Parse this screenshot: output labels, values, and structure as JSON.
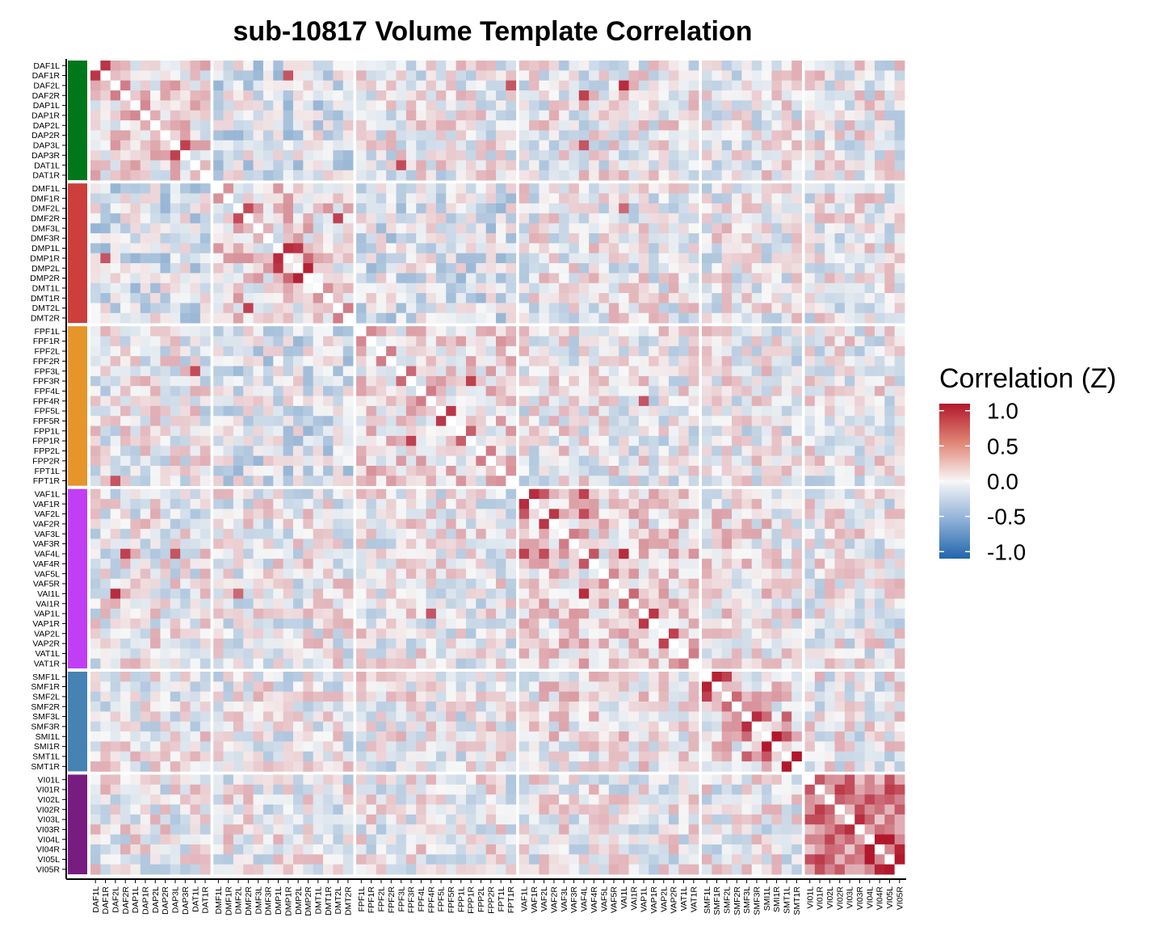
{
  "chart_data": {
    "type": "heatmap",
    "title": "sub-10817 Volume Template Correlation",
    "legend": {
      "title": "Correlation (Z)",
      "ticks": [
        "1.0",
        "0.5",
        "0.0",
        "-0.5",
        "-1.0"
      ],
      "tick_values": [
        1.0,
        0.5,
        0.0,
        -0.5,
        -1.0
      ],
      "range": [
        -1.1,
        1.1
      ],
      "placement": "right"
    },
    "colors": {
      "low": "#2166ac",
      "mid": "#f7f7f7",
      "high": "#b2182b"
    },
    "labels": [
      "DAF1L",
      "DAF1R",
      "DAF2L",
      "DAF2R",
      "DAP1L",
      "DAP1R",
      "DAP2L",
      "DAP2R",
      "DAP3L",
      "DAP3R",
      "DAT1L",
      "DAT1R",
      "DMF1L",
      "DMF1R",
      "DMF2L",
      "DMF2R",
      "DMF3L",
      "DMF3R",
      "DMP1L",
      "DMP1R",
      "DMP2L",
      "DMP2R",
      "DMT1L",
      "DMT1R",
      "DMT2L",
      "DMT2R",
      "FPF1L",
      "FPF1R",
      "FPF2L",
      "FPF2R",
      "FPF3L",
      "FPF3R",
      "FPF4L",
      "FPF4R",
      "FPF5L",
      "FPF5R",
      "FPP1L",
      "FPP1R",
      "FPP2L",
      "FPP2R",
      "FPT1L",
      "FPT1R",
      "VAF1L",
      "VAF1R",
      "VAF2L",
      "VAF2R",
      "VAF3L",
      "VAF3R",
      "VAF4L",
      "VAF4R",
      "VAF5L",
      "VAF5R",
      "VAI1L",
      "VAI1R",
      "VAP1L",
      "VAP1R",
      "VAP2L",
      "VAP2R",
      "VAT1L",
      "VAT1R",
      "SMF1L",
      "SMF1R",
      "SMF2L",
      "SMF2R",
      "SMF3L",
      "SMF3R",
      "SMI1L",
      "SMI1R",
      "SMT1L",
      "SMT1R",
      "VI01L",
      "VI01R",
      "VI02L",
      "VI02R",
      "VI03L",
      "VI03R",
      "VI04L",
      "VI04R",
      "VI05L",
      "VI05R"
    ],
    "groups": [
      {
        "count": 12,
        "color": "#00771a"
      },
      {
        "count": 14,
        "color": "#cc3f3c"
      },
      {
        "count": 16,
        "color": "#e5952a"
      },
      {
        "count": 18,
        "color": "#c23ef5"
      },
      {
        "count": 10,
        "color": "#4682b4"
      },
      {
        "count": 10,
        "color": "#781c81"
      }
    ],
    "highlight_pairs": [
      [
        0,
        1,
        0.95
      ],
      [
        2,
        3,
        0.6
      ],
      [
        4,
        5,
        0.55
      ],
      [
        8,
        9,
        0.9
      ],
      [
        12,
        13,
        0.5
      ],
      [
        14,
        15,
        0.85
      ],
      [
        18,
        19,
        1.0
      ],
      [
        20,
        21,
        1.05
      ],
      [
        18,
        20,
        0.95
      ],
      [
        19,
        21,
        0.7
      ],
      [
        22,
        23,
        0.5
      ],
      [
        24,
        25,
        0.6
      ],
      [
        26,
        27,
        0.55
      ],
      [
        28,
        29,
        0.6
      ],
      [
        30,
        31,
        0.7
      ],
      [
        32,
        33,
        0.6
      ],
      [
        34,
        35,
        0.95
      ],
      [
        36,
        37,
        0.75
      ],
      [
        38,
        39,
        0.6
      ],
      [
        40,
        41,
        0.5
      ],
      [
        42,
        43,
        1.0
      ],
      [
        44,
        45,
        0.95
      ],
      [
        46,
        47,
        0.6
      ],
      [
        48,
        49,
        0.8
      ],
      [
        50,
        51,
        0.55
      ],
      [
        52,
        53,
        0.7
      ],
      [
        54,
        55,
        0.95
      ],
      [
        56,
        57,
        0.9
      ],
      [
        58,
        59,
        0.6
      ],
      [
        42,
        44,
        0.8
      ],
      [
        42,
        48,
        0.9
      ],
      [
        44,
        48,
        0.85
      ],
      [
        52,
        48,
        1.0
      ],
      [
        60,
        61,
        1.05
      ],
      [
        62,
        63,
        0.7
      ],
      [
        64,
        65,
        1.0
      ],
      [
        66,
        67,
        1.1
      ],
      [
        68,
        69,
        1.1
      ],
      [
        60,
        62,
        0.9
      ],
      [
        64,
        66,
        0.7
      ],
      [
        64,
        68,
        0.75
      ],
      [
        66,
        68,
        0.8
      ],
      [
        70,
        71,
        0.8
      ],
      [
        72,
        73,
        0.75
      ],
      [
        74,
        75,
        1.0
      ],
      [
        76,
        77,
        1.15
      ],
      [
        78,
        79,
        1.15
      ],
      [
        76,
        78,
        1.1
      ],
      [
        77,
        79,
        1.05
      ],
      [
        2,
        52,
        1.0
      ],
      [
        3,
        48,
        0.9
      ],
      [
        15,
        24,
        0.9
      ],
      [
        1,
        19,
        0.8
      ],
      [
        30,
        10,
        0.85
      ],
      [
        37,
        31,
        0.9
      ],
      [
        48,
        8,
        0.8
      ],
      [
        52,
        14,
        0.7
      ],
      [
        33,
        54,
        0.8
      ],
      [
        2,
        41,
        0.8
      ]
    ]
  }
}
